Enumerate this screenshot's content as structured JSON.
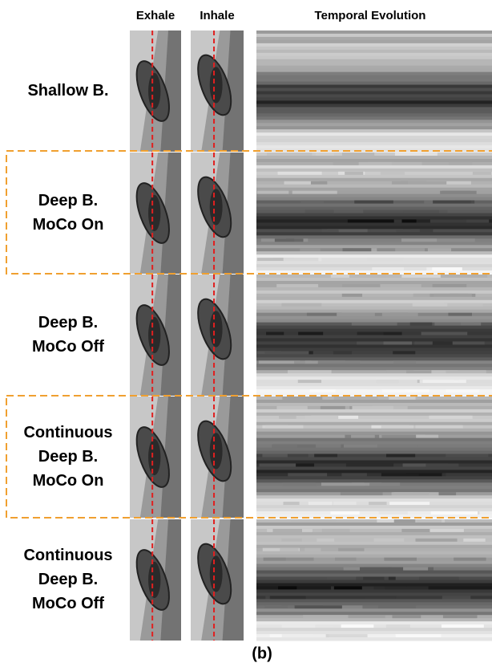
{
  "headers": [
    "Exhale",
    "Inhale",
    "Temporal Evolution"
  ],
  "rows": [
    {
      "label": [
        "Shallow B."
      ]
    },
    {
      "label": [
        "Deep B.",
        "MoCo On"
      ]
    },
    {
      "label": [
        "Deep B.",
        "MoCo Off"
      ]
    },
    {
      "label": [
        "Continuous",
        "Deep B.",
        "MoCo On"
      ]
    },
    {
      "label": [
        "Continuous",
        "Deep B.",
        "MoCo Off"
      ]
    }
  ],
  "caption": "(b)"
}
